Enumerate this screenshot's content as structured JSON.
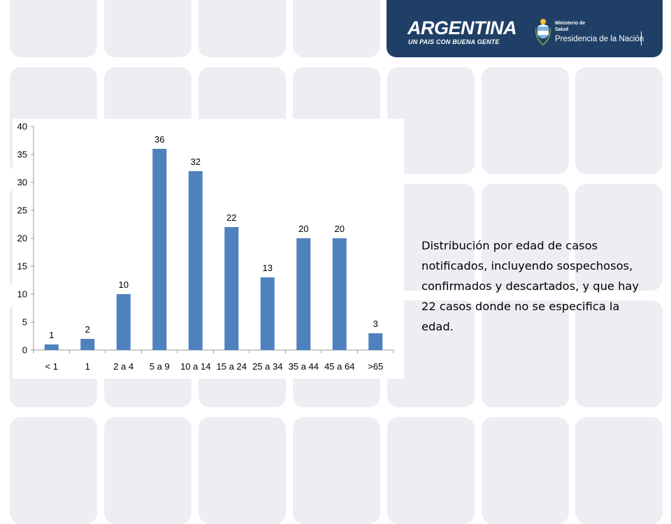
{
  "header": {
    "brand_name": "ARGENTINA",
    "brand_tagline": "UN PAIS CON BUENA GENTE",
    "ministry_line1": "Ministerio de",
    "ministry_line2": "Salud",
    "ministry_line3": "Presidencia de la Nación",
    "emblem_icon": "coat-of-arms-icon"
  },
  "colors": {
    "header_bg": "#1f3f66",
    "tile_bg": "#eceef3",
    "bar_fill": "#4f81bd"
  },
  "chart_data": {
    "type": "bar",
    "categories": [
      "< 1",
      "1",
      "2 a 4",
      "5 a 9",
      "10 a 14",
      "15 a 24",
      "25 a 34",
      "35 a 44",
      "45 a 64",
      ">65"
    ],
    "values": [
      1,
      2,
      10,
      36,
      32,
      22,
      13,
      20,
      20,
      3
    ],
    "data_labels": [
      "1",
      "2",
      "10",
      "36",
      "32",
      "22",
      "13",
      "20",
      "20",
      "3"
    ],
    "yticks": [
      0,
      5,
      10,
      15,
      20,
      25,
      30,
      35,
      40
    ],
    "ylim": [
      0,
      40
    ],
    "title": "",
    "xlabel": "",
    "ylabel": "",
    "grid": false,
    "legend": "none"
  },
  "caption": "Distribución por edad de casos notificados, incluyendo sospechosos, confirmados y descartados, y que hay 22 casos donde no se especifica la edad."
}
